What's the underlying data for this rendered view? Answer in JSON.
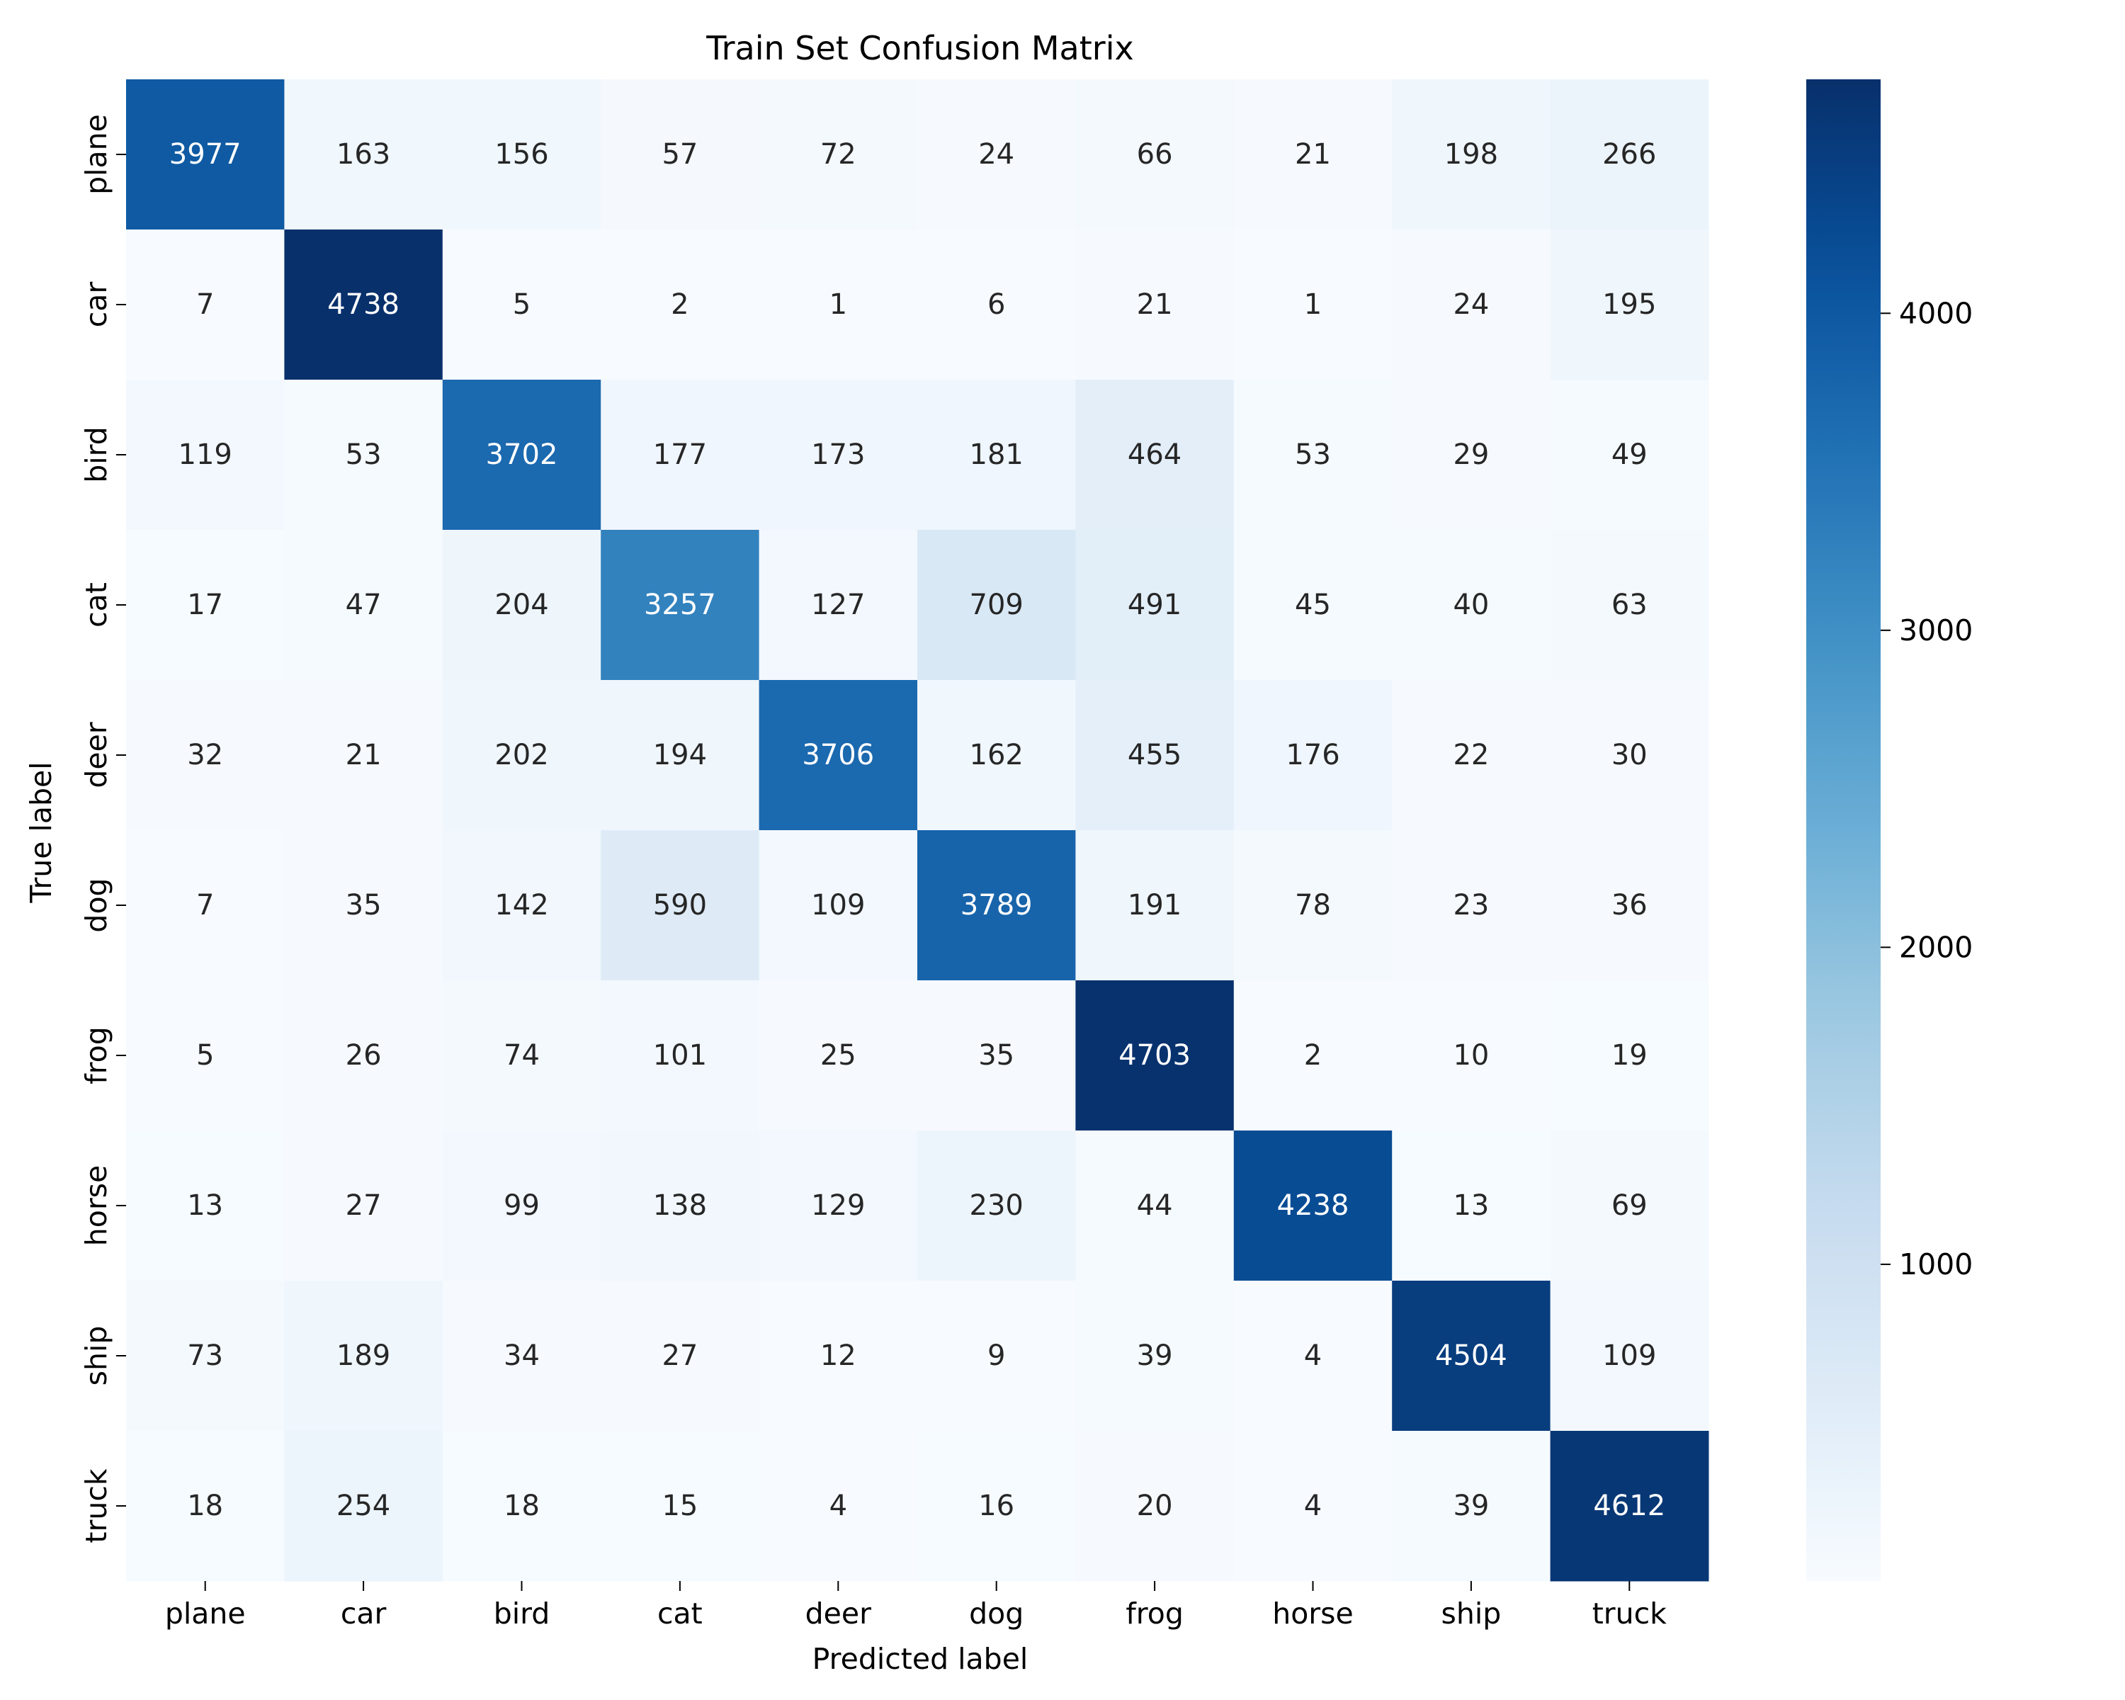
{
  "chart_data": {
    "type": "heatmap",
    "title": "Train Set Confusion Matrix",
    "xlabel": "Predicted label",
    "ylabel": "True label",
    "x_categories": [
      "plane",
      "car",
      "bird",
      "cat",
      "deer",
      "dog",
      "frog",
      "horse",
      "ship",
      "truck"
    ],
    "y_categories": [
      "plane",
      "car",
      "bird",
      "cat",
      "deer",
      "dog",
      "frog",
      "horse",
      "ship",
      "truck"
    ],
    "values": [
      [
        3977,
        163,
        156,
        57,
        72,
        24,
        66,
        21,
        198,
        266
      ],
      [
        7,
        4738,
        5,
        2,
        1,
        6,
        21,
        1,
        24,
        195
      ],
      [
        119,
        53,
        3702,
        177,
        173,
        181,
        464,
        53,
        29,
        49
      ],
      [
        17,
        47,
        204,
        3257,
        127,
        709,
        491,
        45,
        40,
        63
      ],
      [
        32,
        21,
        202,
        194,
        3706,
        162,
        455,
        176,
        22,
        30
      ],
      [
        7,
        35,
        142,
        590,
        109,
        3789,
        191,
        78,
        23,
        36
      ],
      [
        5,
        26,
        74,
        101,
        25,
        35,
        4703,
        2,
        10,
        19
      ],
      [
        13,
        27,
        99,
        138,
        129,
        230,
        44,
        4238,
        13,
        69
      ],
      [
        73,
        189,
        34,
        27,
        12,
        9,
        39,
        4,
        4504,
        109
      ],
      [
        18,
        254,
        18,
        15,
        4,
        16,
        20,
        4,
        39,
        4612
      ]
    ],
    "colormap": "Blues",
    "colorbar": {
      "range": [
        1,
        4738
      ],
      "ticks": [
        1000,
        2000,
        3000,
        4000
      ]
    }
  }
}
